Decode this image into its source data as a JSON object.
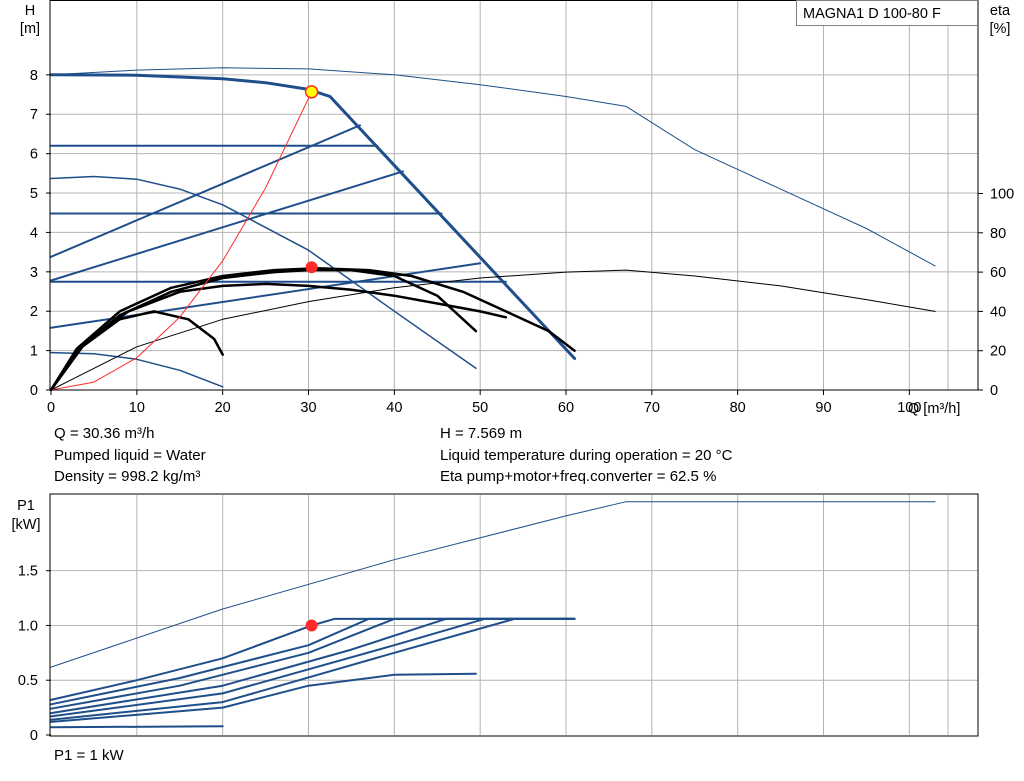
{
  "legend": {
    "pump_name": "MAGNA1 D 100-80 F"
  },
  "colors": {
    "blue": "#1f4f8b",
    "black": "#000000",
    "red": "#ff2b2b",
    "yellow": "#ffff00",
    "grid": "#b4b4b4"
  },
  "info": {
    "flow": "Q = 30.36 m³/h",
    "head": "H = 7.569 m",
    "liquid": "Pumped liquid = Water",
    "temperature": "Liquid temperature during operation = 20 °C",
    "density": "Density = 998.2 kg/m³",
    "eta_total": "Eta pump+motor+freq.converter = 62.5 %",
    "power": "P1 = 1 kW"
  },
  "chart_data": [
    {
      "type": "line",
      "name": "head_and_efficiency",
      "xlabel": "Q [m³/h]",
      "ylabel_left": [
        "H",
        "[m]"
      ],
      "ylabel_right": [
        "eta",
        "[%]"
      ],
      "xlim": [
        0,
        108
      ],
      "ylim_left": [
        0,
        9.9
      ],
      "ylim_right": [
        0,
        100
      ],
      "x_ticks": [
        0,
        10,
        20,
        30,
        40,
        50,
        60,
        70,
        80,
        90,
        100
      ],
      "y_ticks_left": [
        0,
        1,
        2,
        3,
        4,
        5,
        6,
        7,
        8
      ],
      "y_ticks_right": [
        0,
        20,
        40,
        60,
        80,
        100
      ],
      "grid": true,
      "series": [
        {
          "role": "head_max_curve",
          "axis": "left",
          "color": "blue",
          "width": 3,
          "points": [
            [
              0,
              8.0
            ],
            [
              10,
              7.99
            ],
            [
              20,
              7.9
            ],
            [
              25,
              7.8
            ],
            [
              30,
              7.63
            ],
            [
              32.5,
              7.45
            ],
            [
              61,
              0.8
            ]
          ]
        },
        {
          "role": "head_twin_operation",
          "axis": "left",
          "color": "blue",
          "width": 1,
          "points": [
            [
              0,
              8.0
            ],
            [
              10,
              8.12
            ],
            [
              20,
              8.18
            ],
            [
              30,
              8.15
            ],
            [
              40,
              8.0
            ],
            [
              50,
              7.75
            ],
            [
              60,
              7.45
            ],
            [
              67,
              7.2
            ],
            [
              75,
              6.1
            ],
            [
              85,
              5.1
            ],
            [
              95,
              4.1
            ],
            [
              103,
              3.15
            ]
          ]
        },
        {
          "role": "constant_pressure_lines",
          "axis": "left",
          "color": "blue",
          "width": 2,
          "lines": [
            [
              [
                0,
                6.2
              ],
              [
                38,
                6.2
              ]
            ],
            [
              [
                0,
                4.48
              ],
              [
                45.5,
                4.48
              ]
            ],
            [
              [
                0,
                2.75
              ],
              [
                53,
                2.75
              ]
            ]
          ]
        },
        {
          "role": "proportional_pressure_lines",
          "axis": "left",
          "color": "blue",
          "width": 2,
          "lines": [
            [
              [
                0,
                3.38
              ],
              [
                36,
                6.72
              ]
            ],
            [
              [
                0,
                2.78
              ],
              [
                41,
                5.55
              ]
            ],
            [
              [
                0,
                1.58
              ],
              [
                50,
                3.22
              ]
            ]
          ]
        },
        {
          "role": "constant_curves",
          "axis": "left",
          "color": "blue",
          "width": 1.5,
          "lines": [
            [
              [
                0,
                5.37
              ],
              [
                5,
                5.42
              ],
              [
                10,
                5.35
              ],
              [
                15,
                5.1
              ],
              [
                20,
                4.7
              ],
              [
                30,
                3.55
              ],
              [
                40,
                2.0
              ],
              [
                49.5,
                0.55
              ]
            ],
            [
              [
                0,
                0.95
              ],
              [
                5,
                0.92
              ],
              [
                10,
                0.78
              ],
              [
                15,
                0.5
              ],
              [
                20,
                0.08
              ]
            ]
          ]
        },
        {
          "role": "efficiency_curves",
          "axis": "right",
          "color": "black",
          "width": 2.5,
          "lines": [
            [
              [
                0,
                0
              ],
              [
                3,
                20
              ],
              [
                8,
                38
              ],
              [
                14,
                50
              ],
              [
                20,
                57
              ],
              [
                26,
                60
              ],
              [
                30,
                61
              ],
              [
                35,
                61
              ],
              [
                40,
                58
              ],
              [
                45,
                48
              ],
              [
                49.5,
                30
              ]
            ],
            [
              [
                0,
                0
              ],
              [
                3,
                21
              ],
              [
                8,
                40
              ],
              [
                14,
                52
              ],
              [
                20,
                58
              ],
              [
                26,
                61
              ],
              [
                31,
                62
              ],
              [
                37,
                61
              ],
              [
                42,
                58
              ],
              [
                48,
                50
              ],
              [
                53,
                40
              ],
              [
                58,
                30
              ],
              [
                61,
                20
              ]
            ],
            [
              [
                0,
                0
              ],
              [
                4,
                24
              ],
              [
                9,
                40
              ],
              [
                15,
                50
              ],
              [
                20,
                53
              ],
              [
                25,
                54
              ],
              [
                30,
                53
              ],
              [
                35,
                51
              ],
              [
                40,
                48
              ],
              [
                45,
                44
              ],
              [
                50,
                40
              ],
              [
                53,
                37
              ]
            ],
            [
              [
                0,
                0
              ],
              [
                3,
                20
              ],
              [
                8,
                36
              ],
              [
                12,
                40
              ],
              [
                16,
                36
              ],
              [
                19,
                26
              ],
              [
                20,
                18
              ]
            ]
          ]
        },
        {
          "role": "efficiency_twin_operation",
          "axis": "right",
          "color": "black",
          "width": 1,
          "points": [
            [
              0,
              0
            ],
            [
              10,
              22
            ],
            [
              20,
              36
            ],
            [
              30,
              45
            ],
            [
              40,
              52
            ],
            [
              50,
              57
            ],
            [
              60,
              60
            ],
            [
              67,
              61
            ],
            [
              75,
              58
            ],
            [
              85,
              53
            ],
            [
              95,
              46
            ],
            [
              103,
              40
            ]
          ]
        },
        {
          "role": "system_curve",
          "axis": "left",
          "color": "red",
          "width": 1,
          "points": [
            [
              0,
              0
            ],
            [
              5,
              0.2
            ],
            [
              10,
              0.82
            ],
            [
              15,
              1.85
            ],
            [
              20,
              3.28
            ],
            [
              25,
              5.13
            ],
            [
              30.36,
              7.569
            ]
          ]
        }
      ],
      "duty_point": {
        "q": 30.36,
        "h": 7.569
      },
      "efficiency_point": {
        "q": 30.36,
        "eta": 62.5
      }
    },
    {
      "type": "line",
      "name": "power",
      "ylabel": [
        "P1",
        "[kW]"
      ],
      "xlim": [
        0,
        108
      ],
      "ylim": [
        0,
        2.2
      ],
      "x_ticks": [
        0,
        10,
        20,
        30,
        40,
        50,
        60,
        70,
        80,
        90,
        100
      ],
      "y_ticks": [
        0,
        0.5,
        1.0,
        1.5
      ],
      "y_tick_labels": [
        "0",
        "0.5",
        "1.0",
        "1.5"
      ],
      "grid": true,
      "series": [
        {
          "role": "power_twin_operation",
          "color": "blue",
          "width": 1,
          "points": [
            [
              0,
              0.62
            ],
            [
              20,
              1.15
            ],
            [
              40,
              1.6
            ],
            [
              60,
              2.0
            ],
            [
              67,
              2.13
            ],
            [
              103,
              2.13
            ]
          ]
        },
        {
          "role": "power_curves",
          "color": "blue",
          "width": 2,
          "lines": [
            [
              [
                0,
                0.32
              ],
              [
                10,
                0.5
              ],
              [
                20,
                0.7
              ],
              [
                30.36,
                1.0
              ],
              [
                33,
                1.06
              ],
              [
                61,
                1.06
              ]
            ],
            [
              [
                0,
                0.28
              ],
              [
                15,
                0.52
              ],
              [
                30,
                0.82
              ],
              [
                37,
                1.06
              ],
              [
                61,
                1.06
              ]
            ],
            [
              [
                0,
                0.24
              ],
              [
                15,
                0.45
              ],
              [
                30,
                0.75
              ],
              [
                40,
                1.06
              ],
              [
                61,
                1.06
              ]
            ],
            [
              [
                0,
                0.2
              ],
              [
                20,
                0.45
              ],
              [
                35,
                0.78
              ],
              [
                46,
                1.06
              ],
              [
                61,
                1.06
              ]
            ],
            [
              [
                0,
                0.17
              ],
              [
                20,
                0.38
              ],
              [
                40,
                0.82
              ],
              [
                50.5,
                1.06
              ],
              [
                61,
                1.06
              ]
            ],
            [
              [
                0,
                0.14
              ],
              [
                20,
                0.3
              ],
              [
                40,
                0.75
              ],
              [
                54,
                1.06
              ],
              [
                61,
                1.06
              ]
            ],
            [
              [
                0,
                0.12
              ],
              [
                20,
                0.25
              ],
              [
                30,
                0.45
              ],
              [
                40,
                0.55
              ],
              [
                49.5,
                0.56
              ]
            ],
            [
              [
                0,
                0.07
              ],
              [
                20,
                0.08
              ]
            ]
          ]
        }
      ],
      "duty_point": {
        "q": 30.36,
        "p1": 1.0
      }
    }
  ]
}
